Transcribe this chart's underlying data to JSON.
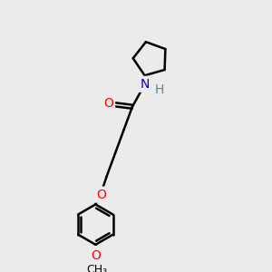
{
  "background_color": "#ebebeb",
  "bond_color": "#000000",
  "bond_width": 1.8,
  "atom_colors": {
    "O": "#ff0000",
    "N": "#0000cd",
    "H": "#4a9090",
    "C": "#000000"
  },
  "font_size_atoms": 10,
  "font_size_small": 9
}
